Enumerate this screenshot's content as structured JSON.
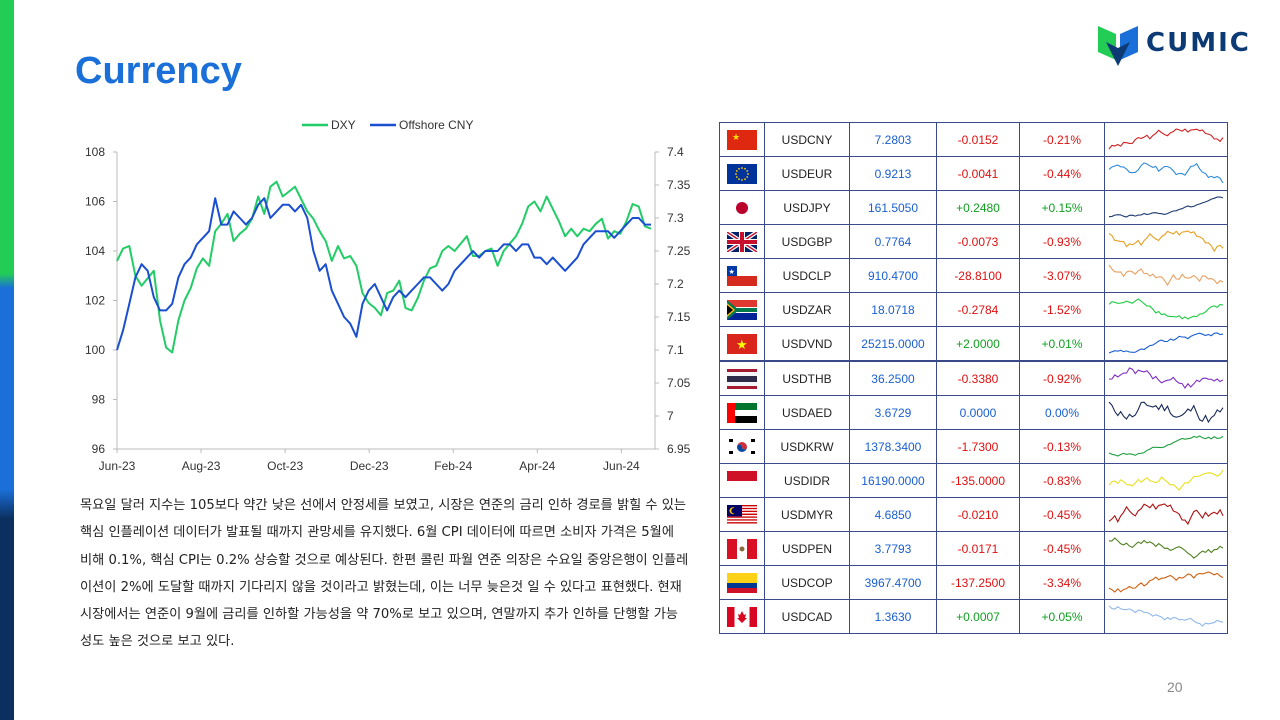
{
  "title": "Currency",
  "logo": {
    "text": "CUMIC"
  },
  "page_number": "20",
  "colors": {
    "accent_blue": "#1a6fd8",
    "dxy_green": "#22cc66",
    "cny_blue": "#1a4fd0",
    "negative": "#e01010",
    "positive": "#10a020"
  },
  "chart_data": {
    "type": "line",
    "legend": "top",
    "x_tick_labels": [
      "Jun-23",
      "Aug-23",
      "Oct-23",
      "Dec-23",
      "Feb-24",
      "Apr-24",
      "Jun-24"
    ],
    "left_axis": {
      "ylim": [
        96,
        108
      ],
      "ticks": [
        96,
        98,
        100,
        102,
        104,
        106,
        108
      ]
    },
    "right_axis": {
      "ylim": [
        6.95,
        7.4
      ],
      "ticks": [
        "6.95",
        "7",
        "7.05",
        "7.1",
        "7.15",
        "7.2",
        "7.25",
        "7.3",
        "7.35",
        "7.4"
      ]
    },
    "series": [
      {
        "name": "DXY",
        "axis": "left",
        "color": "#22cc66",
        "values": [
          103.6,
          104.1,
          104.2,
          103.0,
          102.6,
          102.9,
          103.2,
          101.2,
          100.1,
          99.9,
          101.2,
          102.0,
          102.5,
          103.3,
          103.7,
          103.4,
          104.8,
          105.1,
          105.5,
          104.4,
          104.7,
          104.9,
          105.3,
          106.2,
          105.5,
          106.6,
          106.8,
          106.2,
          106.4,
          106.6,
          106.1,
          105.6,
          105.3,
          104.8,
          104.4,
          103.6,
          104.2,
          103.7,
          103.8,
          103.4,
          102.3,
          101.9,
          101.7,
          101.4,
          102.3,
          102.4,
          102.8,
          101.7,
          101.6,
          102.1,
          102.8,
          103.3,
          103.4,
          104.0,
          104.2,
          104.0,
          104.3,
          104.6,
          103.8,
          103.8,
          104.0,
          104.1,
          103.4,
          104.0,
          104.3,
          104.6,
          105.1,
          105.8,
          106.0,
          105.6,
          106.2,
          105.7,
          105.2,
          104.6,
          104.9,
          104.6,
          104.9,
          104.8,
          105.1,
          105.3,
          104.5,
          104.8,
          104.7,
          105.2,
          105.9,
          105.8,
          105.0,
          104.9
        ]
      },
      {
        "name": "Offshore CNY",
        "axis": "right",
        "color": "#1a4fd0",
        "values": [
          7.1,
          7.13,
          7.17,
          7.21,
          7.23,
          7.22,
          7.18,
          7.16,
          7.16,
          7.17,
          7.21,
          7.23,
          7.24,
          7.26,
          7.27,
          7.28,
          7.33,
          7.29,
          7.29,
          7.31,
          7.3,
          7.29,
          7.3,
          7.32,
          7.33,
          7.3,
          7.31,
          7.32,
          7.32,
          7.31,
          7.32,
          7.3,
          7.25,
          7.22,
          7.23,
          7.19,
          7.17,
          7.15,
          7.14,
          7.12,
          7.17,
          7.19,
          7.2,
          7.18,
          7.16,
          7.18,
          7.19,
          7.18,
          7.19,
          7.2,
          7.21,
          7.21,
          7.2,
          7.19,
          7.2,
          7.22,
          7.23,
          7.24,
          7.25,
          7.24,
          7.25,
          7.25,
          7.25,
          7.26,
          7.26,
          7.25,
          7.26,
          7.26,
          7.24,
          7.24,
          7.23,
          7.24,
          7.23,
          7.22,
          7.23,
          7.24,
          7.26,
          7.27,
          7.28,
          7.28,
          7.28,
          7.27,
          7.28,
          7.29,
          7.3,
          7.3,
          7.29,
          7.29
        ]
      }
    ]
  },
  "paragraph": "목요일 달러 지수는 105보다 약간 낮은 선에서 안정세를 보였고, 시장은 연준의 금리 인하 경로를 밝힐 수 있는 핵심 인플레이션 데이터가 발표될 때까지 관망세를 유지했다. 6월 CPI 데이터에 따르면 소비자 가격은 5월에 비해 0.1%, 핵심 CPI는 0.2% 상승할 것으로 예상된다. 한편 콜린 파월 연준 의장은 수요일 중앙은행이 인플레이션이 2%에 도달할 때까지 기다리지 않을 것이라고 밝혔는데, 이는 너무 늦은것 일 수 있다고 표현했다. 현재 시장에서는 연준이 9월에 금리를 인하할 가능성을 약 70%로 보고 있으며, 연말까지 추가 인하를 단행할 가능성도 높은 것으로 보고 있다.",
  "table": {
    "rows": [
      {
        "flag": "cn",
        "pair": "USDCNY",
        "rate": "7.2803",
        "change": "-0.0152",
        "pct": "-0.21%",
        "dir": "neg",
        "spark_color": "#d02020"
      },
      {
        "flag": "eu",
        "pair": "USDEUR",
        "rate": "0.9213",
        "change": "-0.0041",
        "pct": "-0.44%",
        "dir": "neg",
        "spark_color": "#2e8ad8"
      },
      {
        "flag": "jp",
        "pair": "USDJPY",
        "rate": "161.5050",
        "change": "+0.2480",
        "pct": "+0.15%",
        "dir": "pos",
        "spark_color": "#1f3b70"
      },
      {
        "flag": "gb",
        "pair": "USDGBP",
        "rate": "0.7764",
        "change": "-0.0073",
        "pct": "-0.93%",
        "dir": "neg",
        "spark_color": "#e8a020"
      },
      {
        "flag": "cl",
        "pair": "USDCLP",
        "rate": "910.4700",
        "change": "-28.8100",
        "pct": "-3.07%",
        "dir": "neg",
        "spark_color": "#e8a060"
      },
      {
        "flag": "za",
        "pair": "USDZAR",
        "rate": "18.0718",
        "change": "-0.2784",
        "pct": "-1.52%",
        "dir": "neg",
        "spark_color": "#22cc44"
      },
      {
        "flag": "vn",
        "pair": "USDVND",
        "rate": "25215.0000",
        "change": "+2.0000",
        "pct": "+0.01%",
        "dir": "pos",
        "spark_color": "#1a5fd0"
      },
      {
        "flag": "th",
        "pair": "USDTHB",
        "rate": "36.2500",
        "change": "-0.3380",
        "pct": "-0.92%",
        "dir": "neg",
        "spark_color": "#8030c0"
      },
      {
        "flag": "ae",
        "pair": "USDAED",
        "rate": "3.6729",
        "change": "0.0000",
        "pct": "0.00%",
        "dir": "zero",
        "spark_color": "#1a2a5a"
      },
      {
        "flag": "kr",
        "pair": "USDKRW",
        "rate": "1378.3400",
        "change": "-1.7300",
        "pct": "-0.13%",
        "dir": "neg",
        "spark_color": "#20a040"
      },
      {
        "flag": "id",
        "pair": "USDIDR",
        "rate": "16190.0000",
        "change": "-135.0000",
        "pct": "-0.83%",
        "dir": "neg",
        "spark_color": "#e8e020"
      },
      {
        "flag": "my",
        "pair": "USDMYR",
        "rate": "4.6850",
        "change": "-0.0210",
        "pct": "-0.45%",
        "dir": "neg",
        "spark_color": "#b01010"
      },
      {
        "flag": "pe",
        "pair": "USDPEN",
        "rate": "3.7793",
        "change": "-0.0171",
        "pct": "-0.45%",
        "dir": "neg",
        "spark_color": "#508020"
      },
      {
        "flag": "co",
        "pair": "USDCOP",
        "rate": "3967.4700",
        "change": "-137.2500",
        "pct": "-3.34%",
        "dir": "neg",
        "spark_color": "#d06010"
      },
      {
        "flag": "ca",
        "pair": "USDCAD",
        "rate": "1.3630",
        "change": "+0.0007",
        "pct": "+0.05%",
        "dir": "pos",
        "spark_color": "#90b8e8"
      }
    ]
  }
}
